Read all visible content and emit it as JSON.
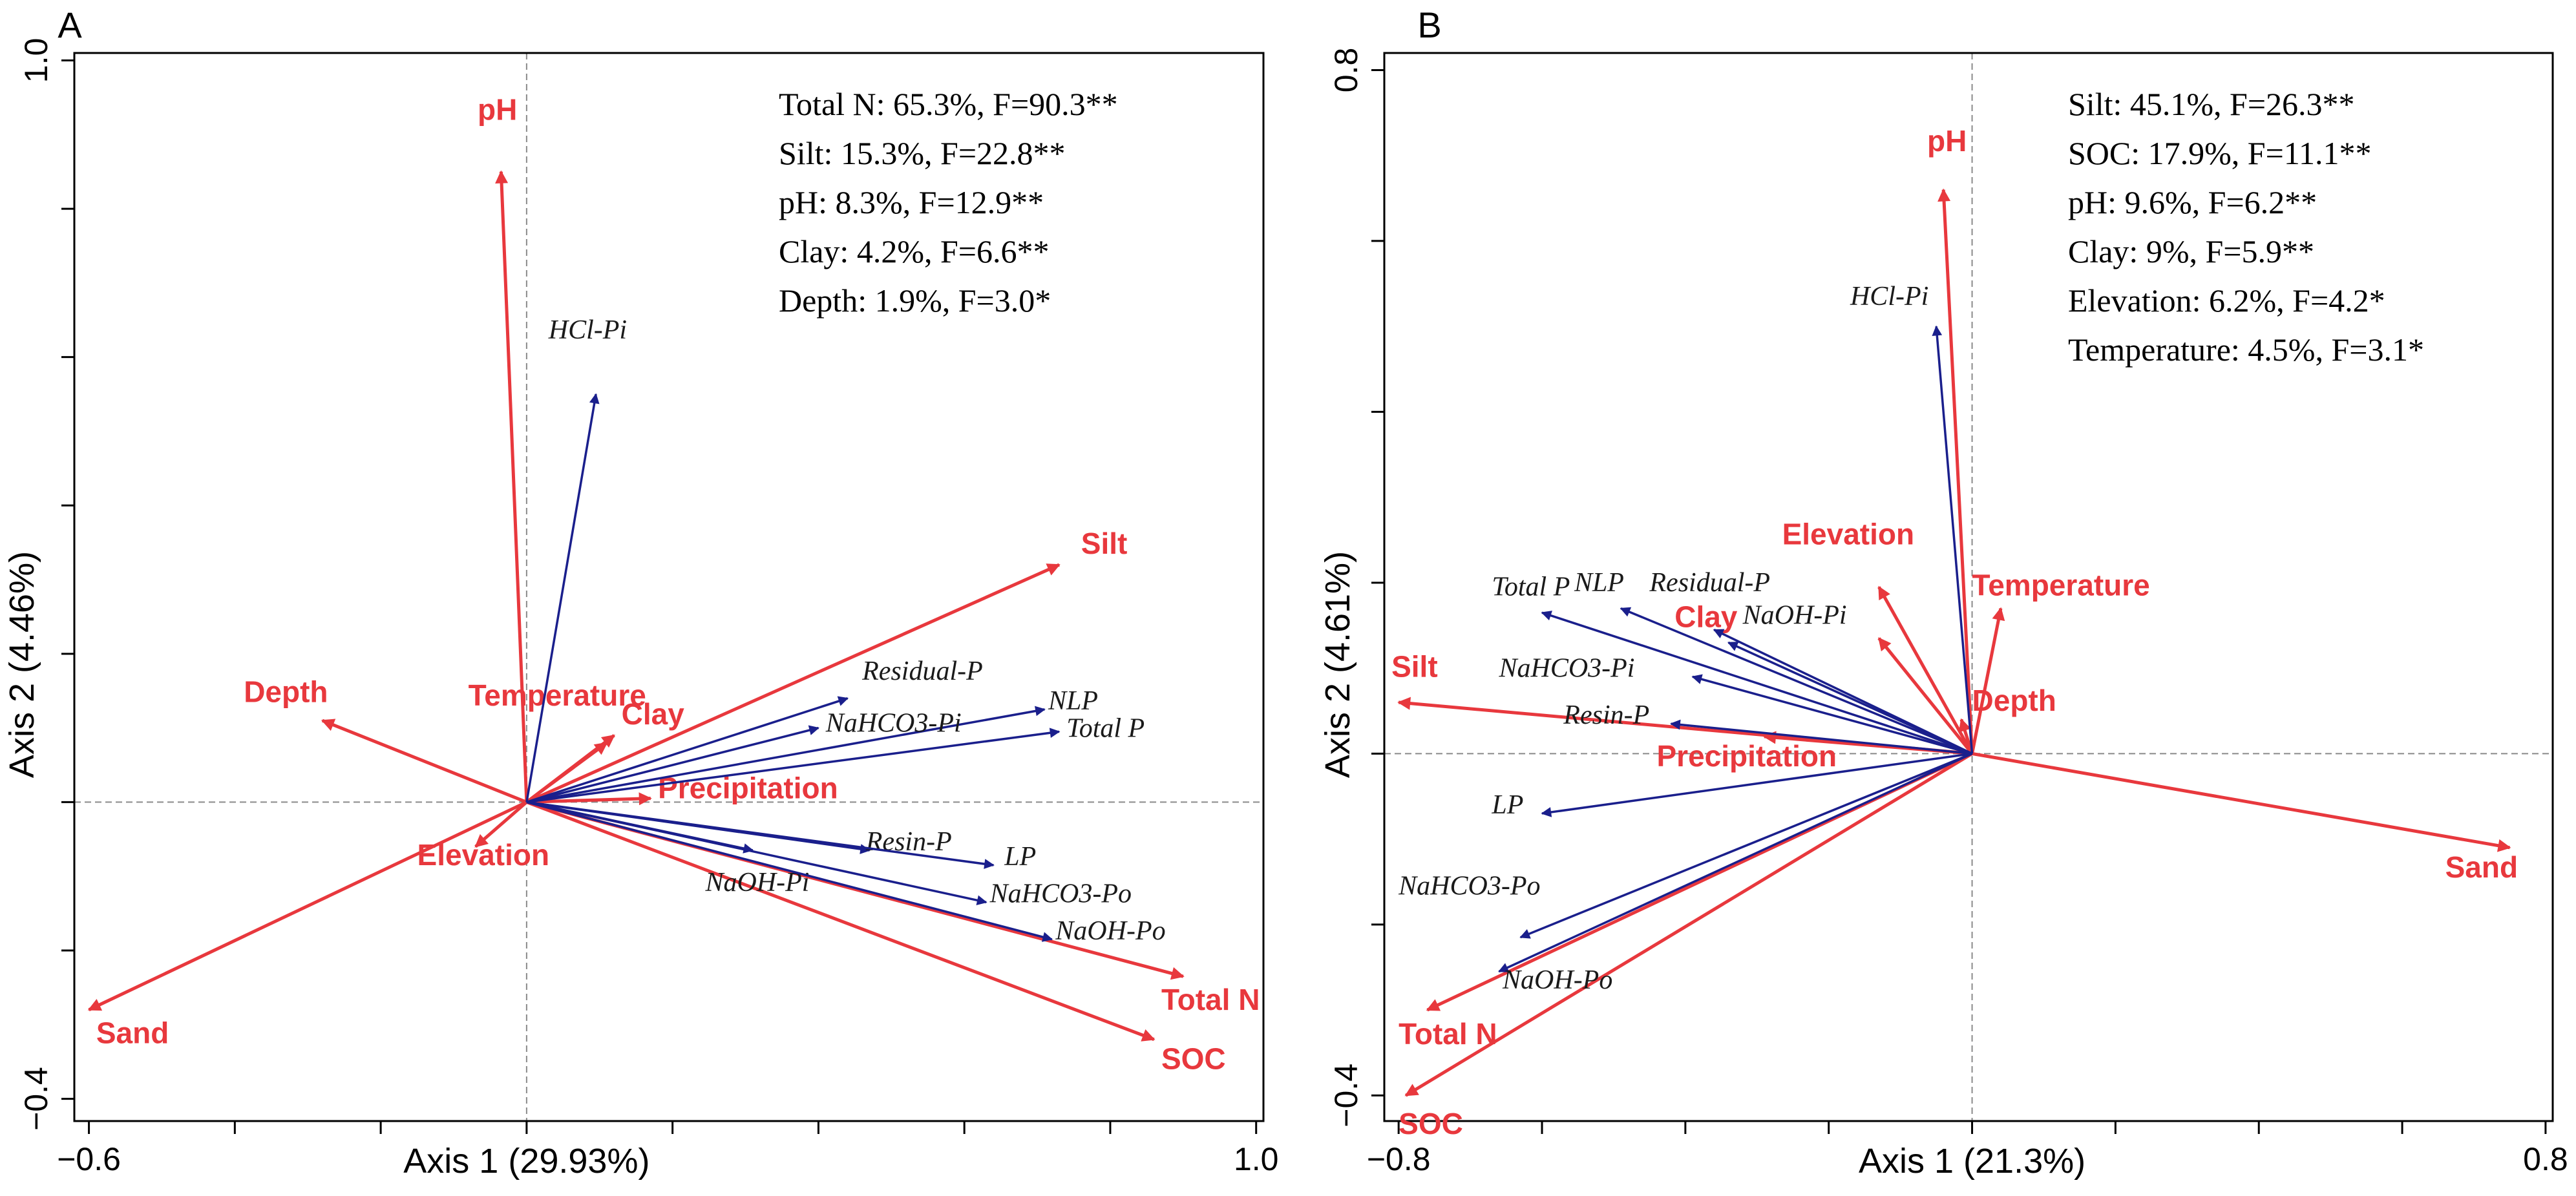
{
  "chart_data": [
    {
      "type": "biplot",
      "panel": "A",
      "xlabel": "Axis 1 (29.93%)",
      "ylabel": "Axis 2 (4.46%)",
      "xlim": [
        -0.62,
        1.01
      ],
      "ylim": [
        -0.43,
        1.01
      ],
      "xticks_labeled": [
        {
          "v": -0.6,
          "t": "−0.6"
        },
        {
          "v": 1.0,
          "t": "1.0"
        }
      ],
      "yticks_labeled": [
        {
          "v": 1.0,
          "t": "1.0"
        },
        {
          "v": -0.4,
          "t": "−0.4"
        }
      ],
      "xticks_minor": [
        -0.4,
        -0.2,
        0.0,
        0.2,
        0.4,
        0.6,
        0.8
      ],
      "yticks_minor": [
        0.8,
        0.6,
        0.4,
        0.2,
        0.0,
        -0.2
      ],
      "stats": [
        "Total N: 65.3%, F=90.3**",
        "Silt: 15.3%, F=22.8**",
        "pH: 8.3%, F=12.9**",
        "Clay: 4.2%, F=6.6**",
        "Depth: 1.9%, F=3.0*"
      ],
      "env_vectors": [
        {
          "name": "pH",
          "x": -0.035,
          "y": 0.85,
          "lx": -0.04,
          "ly": 0.92,
          "anchor": "middle"
        },
        {
          "name": "Silt",
          "x": 0.73,
          "y": 0.32,
          "lx": 0.76,
          "ly": 0.335,
          "anchor": "start"
        },
        {
          "name": "Depth",
          "x": -0.28,
          "y": 0.11,
          "lx": -0.33,
          "ly": 0.135,
          "anchor": "middle"
        },
        {
          "name": "Temperature",
          "x": 0.12,
          "y": 0.09,
          "lx": -0.08,
          "ly": 0.13,
          "anchor": "start"
        },
        {
          "name": "Clay",
          "x": 0.11,
          "y": 0.08,
          "lx": 0.13,
          "ly": 0.105,
          "anchor": "start"
        },
        {
          "name": "Precipitation",
          "x": 0.17,
          "y": 0.005,
          "lx": 0.18,
          "ly": 0.005,
          "anchor": "start"
        },
        {
          "name": "Elevation",
          "x": -0.07,
          "y": -0.06,
          "lx": -0.15,
          "ly": -0.085,
          "anchor": "start"
        },
        {
          "name": "Sand",
          "x": -0.6,
          "y": -0.28,
          "lx": -0.59,
          "ly": -0.325,
          "anchor": "start"
        },
        {
          "name": "Total N",
          "x": 0.9,
          "y": -0.235,
          "lx": 0.87,
          "ly": -0.28,
          "anchor": "start"
        },
        {
          "name": "SOC",
          "x": 0.86,
          "y": -0.32,
          "lx": 0.87,
          "ly": -0.36,
          "anchor": "start"
        }
      ],
      "p_vectors": [
        {
          "name": "HCl-Pi",
          "x": 0.095,
          "y": 0.55,
          "lx": 0.03,
          "ly": 0.625,
          "anchor": "start"
        },
        {
          "name": "Residual-P",
          "x": 0.44,
          "y": 0.14,
          "lx": 0.46,
          "ly": 0.165,
          "anchor": "start"
        },
        {
          "name": "NLP",
          "x": 0.71,
          "y": 0.125,
          "lx": 0.715,
          "ly": 0.125,
          "anchor": "start"
        },
        {
          "name": "NaHCO3-Pi",
          "x": 0.4,
          "y": 0.1,
          "lx": 0.41,
          "ly": 0.095,
          "anchor": "start"
        },
        {
          "name": "Total P",
          "x": 0.73,
          "y": 0.095,
          "lx": 0.74,
          "ly": 0.088,
          "anchor": "start"
        },
        {
          "name": "Resin-P",
          "x": 0.47,
          "y": -0.065,
          "lx": 0.465,
          "ly": -0.065,
          "anchor": "start"
        },
        {
          "name": "LP",
          "x": 0.64,
          "y": -0.085,
          "lx": 0.655,
          "ly": -0.085,
          "anchor": "start"
        },
        {
          "name": "NaOH-Pi",
          "x": 0.31,
          "y": -0.065,
          "lx": 0.245,
          "ly": -0.12,
          "anchor": "start"
        },
        {
          "name": "NaHCO3-Po",
          "x": 0.63,
          "y": -0.135,
          "lx": 0.635,
          "ly": -0.135,
          "anchor": "start"
        },
        {
          "name": "NaOH-Po",
          "x": 0.72,
          "y": -0.185,
          "lx": 0.725,
          "ly": -0.185,
          "anchor": "start"
        }
      ]
    },
    {
      "type": "biplot",
      "panel": "B",
      "xlabel": "Axis 1 (21.3%)",
      "ylabel": "Axis 2 (4.61%)",
      "xlim": [
        -0.82,
        0.81
      ],
      "ylim": [
        -0.43,
        0.82
      ],
      "xticks_labeled": [
        {
          "v": -0.8,
          "t": "−0.8"
        },
        {
          "v": 0.8,
          "t": "0.8"
        }
      ],
      "yticks_labeled": [
        {
          "v": 0.8,
          "t": "0.8"
        },
        {
          "v": -0.4,
          "t": "−0.4"
        }
      ],
      "xticks_minor": [
        -0.6,
        -0.4,
        -0.2,
        0.0,
        0.2,
        0.4,
        0.6
      ],
      "yticks_minor": [
        0.6,
        0.4,
        0.2,
        0.0,
        -0.2
      ],
      "stats": [
        "Silt: 45.1%, F=26.3**",
        "SOC: 17.9%, F=11.1**",
        "pH: 9.6%, F=6.2**",
        "Clay: 9%, F=5.9**",
        "Elevation: 6.2%, F=4.2*",
        "Temperature: 4.5%, F=3.1*"
      ],
      "env_vectors": [
        {
          "name": "pH",
          "x": -0.04,
          "y": 0.66,
          "lx": -0.035,
          "ly": 0.705,
          "anchor": "middle"
        },
        {
          "name": "Elevation",
          "x": -0.13,
          "y": 0.195,
          "lx": -0.265,
          "ly": 0.245,
          "anchor": "start"
        },
        {
          "name": "Temperature",
          "x": 0.04,
          "y": 0.17,
          "lx": 0.0,
          "ly": 0.185,
          "anchor": "start"
        },
        {
          "name": "Clay",
          "x": -0.13,
          "y": 0.135,
          "lx": -0.415,
          "ly": 0.148,
          "anchor": "start"
        },
        {
          "name": "Silt",
          "x": -0.8,
          "y": 0.06,
          "lx": -0.81,
          "ly": 0.09,
          "anchor": "start"
        },
        {
          "name": "Depth",
          "x": -0.015,
          "y": 0.04,
          "lx": 0.0,
          "ly": 0.05,
          "anchor": "start"
        },
        {
          "name": "Precipitation",
          "x": -0.29,
          "y": 0.02,
          "lx": -0.44,
          "ly": -0.015,
          "anchor": "start"
        },
        {
          "name": "Sand",
          "x": 0.75,
          "y": -0.11,
          "lx": 0.66,
          "ly": -0.145,
          "anchor": "start"
        },
        {
          "name": "Total N",
          "x": -0.76,
          "y": -0.3,
          "lx": -0.8,
          "ly": -0.34,
          "anchor": "start"
        },
        {
          "name": "SOC",
          "x": -0.79,
          "y": -0.4,
          "lx": -0.8,
          "ly": -0.445,
          "anchor": "start"
        }
      ],
      "p_vectors": [
        {
          "name": "HCl-Pi",
          "x": -0.05,
          "y": 0.5,
          "lx": -0.17,
          "ly": 0.525,
          "anchor": "start"
        },
        {
          "name": "Total P",
          "x": -0.6,
          "y": 0.165,
          "lx": -0.67,
          "ly": 0.185,
          "anchor": "start"
        },
        {
          "name": "NLP",
          "x": -0.49,
          "y": 0.17,
          "lx": -0.555,
          "ly": 0.19,
          "anchor": "start"
        },
        {
          "name": "Residual-P",
          "x": -0.36,
          "y": 0.145,
          "lx": -0.45,
          "ly": 0.19,
          "anchor": "start"
        },
        {
          "name": "NaOH-Pi",
          "x": -0.34,
          "y": 0.13,
          "lx": -0.32,
          "ly": 0.152,
          "anchor": "start"
        },
        {
          "name": "NaHCO3-Pi",
          "x": -0.39,
          "y": 0.09,
          "lx": -0.66,
          "ly": 0.09,
          "anchor": "start"
        },
        {
          "name": "Resin-P",
          "x": -0.42,
          "y": 0.035,
          "lx": -0.57,
          "ly": 0.035,
          "anchor": "start"
        },
        {
          "name": "LP",
          "x": -0.6,
          "y": -0.07,
          "lx": -0.67,
          "ly": -0.07,
          "anchor": "start"
        },
        {
          "name": "NaHCO3-Po",
          "x": -0.63,
          "y": -0.215,
          "lx": -0.8,
          "ly": -0.165,
          "anchor": "start"
        },
        {
          "name": "NaOH-Po",
          "x": -0.66,
          "y": -0.255,
          "lx": -0.655,
          "ly": -0.275,
          "anchor": "start"
        }
      ]
    }
  ],
  "colors": {
    "env": "#e8383d",
    "p": "#1a1f8c",
    "axis": "#000000",
    "zero": "#8a8a8a"
  },
  "icons": {
    "env_arrow": "arrowhead-red",
    "p_arrow": "arrowhead-navy"
  }
}
